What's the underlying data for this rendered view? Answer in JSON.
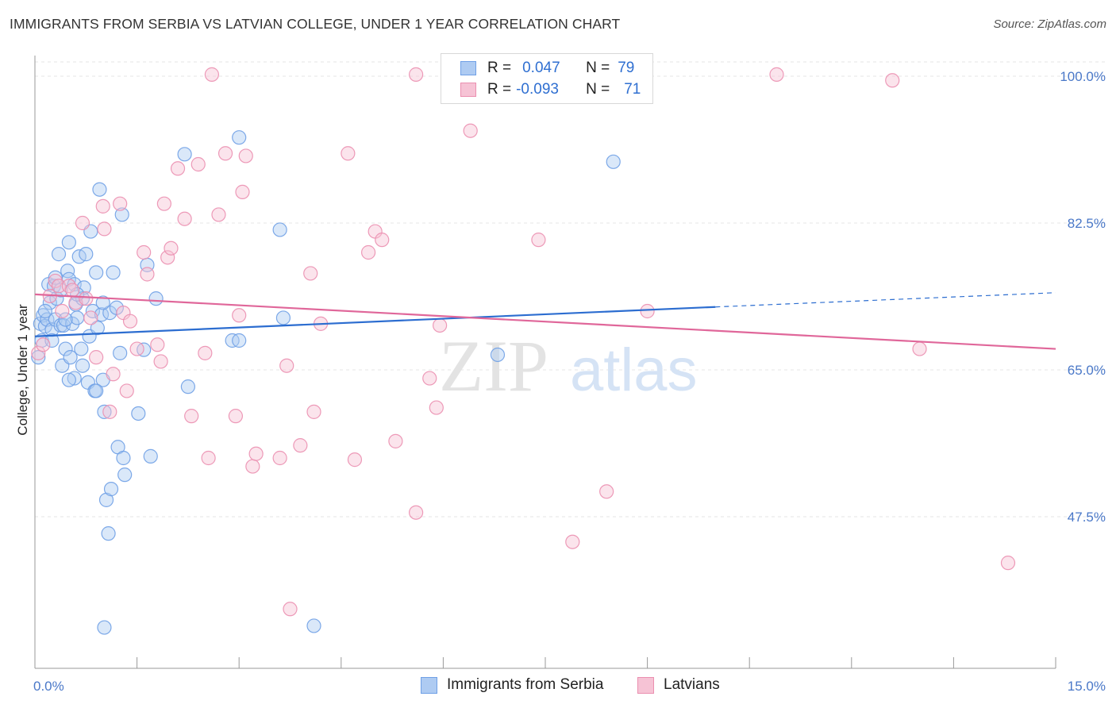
{
  "chart_data": {
    "type": "scatter",
    "title": "IMMIGRANTS FROM SERBIA VS LATVIAN COLLEGE, UNDER 1 YEAR CORRELATION CHART",
    "source": "Source: ZipAtlas.com",
    "xlabel": "",
    "ylabel": "College, Under 1 year",
    "xlim": [
      0,
      15
    ],
    "ylim": [
      30,
      102
    ],
    "x_tick_labels": [
      "0.0%",
      "15.0%"
    ],
    "y_ticks": [
      47.5,
      65.0,
      82.5,
      100.0
    ],
    "y_tick_labels": [
      "47.5%",
      "65.0%",
      "82.5%",
      "100.0%"
    ],
    "grid": true,
    "watermark": "ZIPatlas",
    "legend": {
      "rows": [
        {
          "r_label": "R =",
          "r_value": "0.047",
          "n_label": "N =",
          "n_value": "79"
        },
        {
          "r_label": "R =",
          "r_value": "-0.093",
          "n_label": "N =",
          "n_value": "71"
        }
      ]
    },
    "series": [
      {
        "name": "Immigrants from Serbia",
        "color": "#6fa0e6",
        "fill": "#aecbf2",
        "line_color": "#2c6dd0",
        "trend": {
          "x0": 0.0,
          "y0": 69.0,
          "x1": 10.0,
          "y1": 72.5,
          "dash_to_x": 15.0,
          "dash_to_y": 74.2
        },
        "points": [
          [
            0.05,
            66.5
          ],
          [
            0.08,
            70.5
          ],
          [
            0.1,
            68.5
          ],
          [
            0.12,
            71.5
          ],
          [
            0.15,
            70.2
          ],
          [
            0.18,
            71.0
          ],
          [
            0.2,
            75.2
          ],
          [
            0.22,
            73.0
          ],
          [
            0.25,
            69.8
          ],
          [
            0.28,
            75.0
          ],
          [
            0.3,
            76.0
          ],
          [
            0.3,
            71.0
          ],
          [
            0.32,
            73.5
          ],
          [
            0.35,
            78.8
          ],
          [
            0.38,
            70.3
          ],
          [
            0.4,
            65.5
          ],
          [
            0.42,
            70.3
          ],
          [
            0.45,
            67.5
          ],
          [
            0.48,
            76.8
          ],
          [
            0.5,
            75.8
          ],
          [
            0.5,
            80.2
          ],
          [
            0.52,
            66.5
          ],
          [
            0.55,
            70.5
          ],
          [
            0.58,
            75.2
          ],
          [
            0.58,
            64.0
          ],
          [
            0.6,
            72.8
          ],
          [
            0.62,
            71.2
          ],
          [
            0.65,
            78.5
          ],
          [
            0.68,
            67.5
          ],
          [
            0.7,
            65.5
          ],
          [
            0.72,
            74.8
          ],
          [
            0.75,
            78.8
          ],
          [
            0.78,
            63.5
          ],
          [
            0.8,
            69.0
          ],
          [
            0.82,
            81.5
          ],
          [
            0.85,
            72.0
          ],
          [
            0.88,
            62.5
          ],
          [
            0.9,
            76.6
          ],
          [
            0.92,
            70.0
          ],
          [
            0.95,
            86.5
          ],
          [
            0.98,
            71.6
          ],
          [
            1.0,
            63.8
          ],
          [
            1.02,
            60.0
          ],
          [
            1.05,
            49.5
          ],
          [
            1.08,
            45.5
          ],
          [
            1.1,
            71.8
          ],
          [
            1.12,
            50.8
          ],
          [
            1.15,
            76.6
          ],
          [
            1.2,
            72.4
          ],
          [
            1.22,
            55.8
          ],
          [
            1.25,
            67.0
          ],
          [
            1.28,
            83.5
          ],
          [
            1.3,
            54.5
          ],
          [
            1.32,
            52.5
          ],
          [
            1.52,
            59.8
          ],
          [
            1.6,
            67.4
          ],
          [
            1.65,
            77.5
          ],
          [
            1.7,
            54.7
          ],
          [
            1.78,
            73.5
          ],
          [
            2.2,
            90.7
          ],
          [
            2.25,
            63.0
          ],
          [
            2.9,
            68.5
          ],
          [
            3.0,
            68.5
          ],
          [
            3.0,
            92.7
          ],
          [
            3.6,
            81.7
          ],
          [
            3.65,
            71.2
          ],
          [
            4.1,
            34.5
          ],
          [
            1.02,
            34.3
          ],
          [
            6.8,
            66.8
          ],
          [
            8.5,
            89.8
          ],
          [
            0.5,
            63.8
          ],
          [
            0.9,
            62.5
          ],
          [
            0.25,
            68.5
          ],
          [
            0.15,
            72.0
          ],
          [
            1.0,
            73.0
          ],
          [
            0.7,
            73.5
          ],
          [
            0.38,
            74.5
          ],
          [
            0.62,
            74.0
          ],
          [
            0.45,
            71.0
          ]
        ]
      },
      {
        "name": "Latvians",
        "color": "#eb8fb0",
        "fill": "#f6c3d5",
        "line_color": "#e0679a",
        "trend": {
          "x0": 0.0,
          "y0": 74.0,
          "x1": 15.0,
          "y1": 67.5
        },
        "points": [
          [
            0.05,
            67.0
          ],
          [
            0.12,
            68.0
          ],
          [
            0.22,
            73.8
          ],
          [
            0.3,
            75.6
          ],
          [
            0.35,
            75.0
          ],
          [
            0.4,
            72.0
          ],
          [
            0.5,
            75.0
          ],
          [
            0.55,
            74.5
          ],
          [
            0.6,
            73.0
          ],
          [
            0.7,
            82.5
          ],
          [
            0.75,
            73.5
          ],
          [
            0.82,
            71.2
          ],
          [
            0.9,
            66.5
          ],
          [
            1.0,
            84.5
          ],
          [
            1.02,
            81.8
          ],
          [
            1.1,
            60.0
          ],
          [
            1.15,
            64.5
          ],
          [
            1.25,
            84.8
          ],
          [
            1.3,
            71.8
          ],
          [
            1.35,
            62.5
          ],
          [
            1.4,
            70.8
          ],
          [
            1.5,
            67.5
          ],
          [
            1.6,
            79.0
          ],
          [
            1.65,
            76.4
          ],
          [
            1.8,
            68.0
          ],
          [
            1.85,
            66.0
          ],
          [
            1.9,
            84.8
          ],
          [
            1.95,
            78.4
          ],
          [
            2.0,
            79.5
          ],
          [
            2.1,
            89.0
          ],
          [
            2.2,
            83.0
          ],
          [
            2.3,
            59.5
          ],
          [
            2.4,
            89.5
          ],
          [
            2.5,
            67.0
          ],
          [
            2.55,
            54.5
          ],
          [
            2.6,
            100.2
          ],
          [
            2.7,
            83.5
          ],
          [
            2.8,
            90.8
          ],
          [
            2.95,
            59.5
          ],
          [
            3.0,
            71.5
          ],
          [
            3.05,
            86.2
          ],
          [
            3.1,
            90.5
          ],
          [
            3.2,
            53.5
          ],
          [
            3.25,
            55.0
          ],
          [
            3.6,
            54.5
          ],
          [
            3.7,
            65.5
          ],
          [
            3.75,
            36.5
          ],
          [
            3.9,
            56.0
          ],
          [
            4.05,
            76.5
          ],
          [
            4.1,
            60.0
          ],
          [
            4.2,
            70.5
          ],
          [
            4.6,
            90.8
          ],
          [
            4.7,
            54.3
          ],
          [
            4.9,
            79.0
          ],
          [
            5.0,
            81.5
          ],
          [
            5.1,
            80.5
          ],
          [
            5.3,
            56.5
          ],
          [
            5.6,
            48.0
          ],
          [
            5.6,
            100.2
          ],
          [
            5.8,
            64.0
          ],
          [
            5.9,
            60.5
          ],
          [
            5.95,
            70.3
          ],
          [
            6.4,
            93.5
          ],
          [
            7.4,
            80.5
          ],
          [
            7.9,
            44.5
          ],
          [
            8.4,
            50.5
          ],
          [
            9.0,
            72.0
          ],
          [
            10.9,
            100.2
          ],
          [
            12.6,
            99.5
          ],
          [
            13.0,
            67.5
          ],
          [
            14.3,
            42.0
          ]
        ]
      }
    ]
  }
}
